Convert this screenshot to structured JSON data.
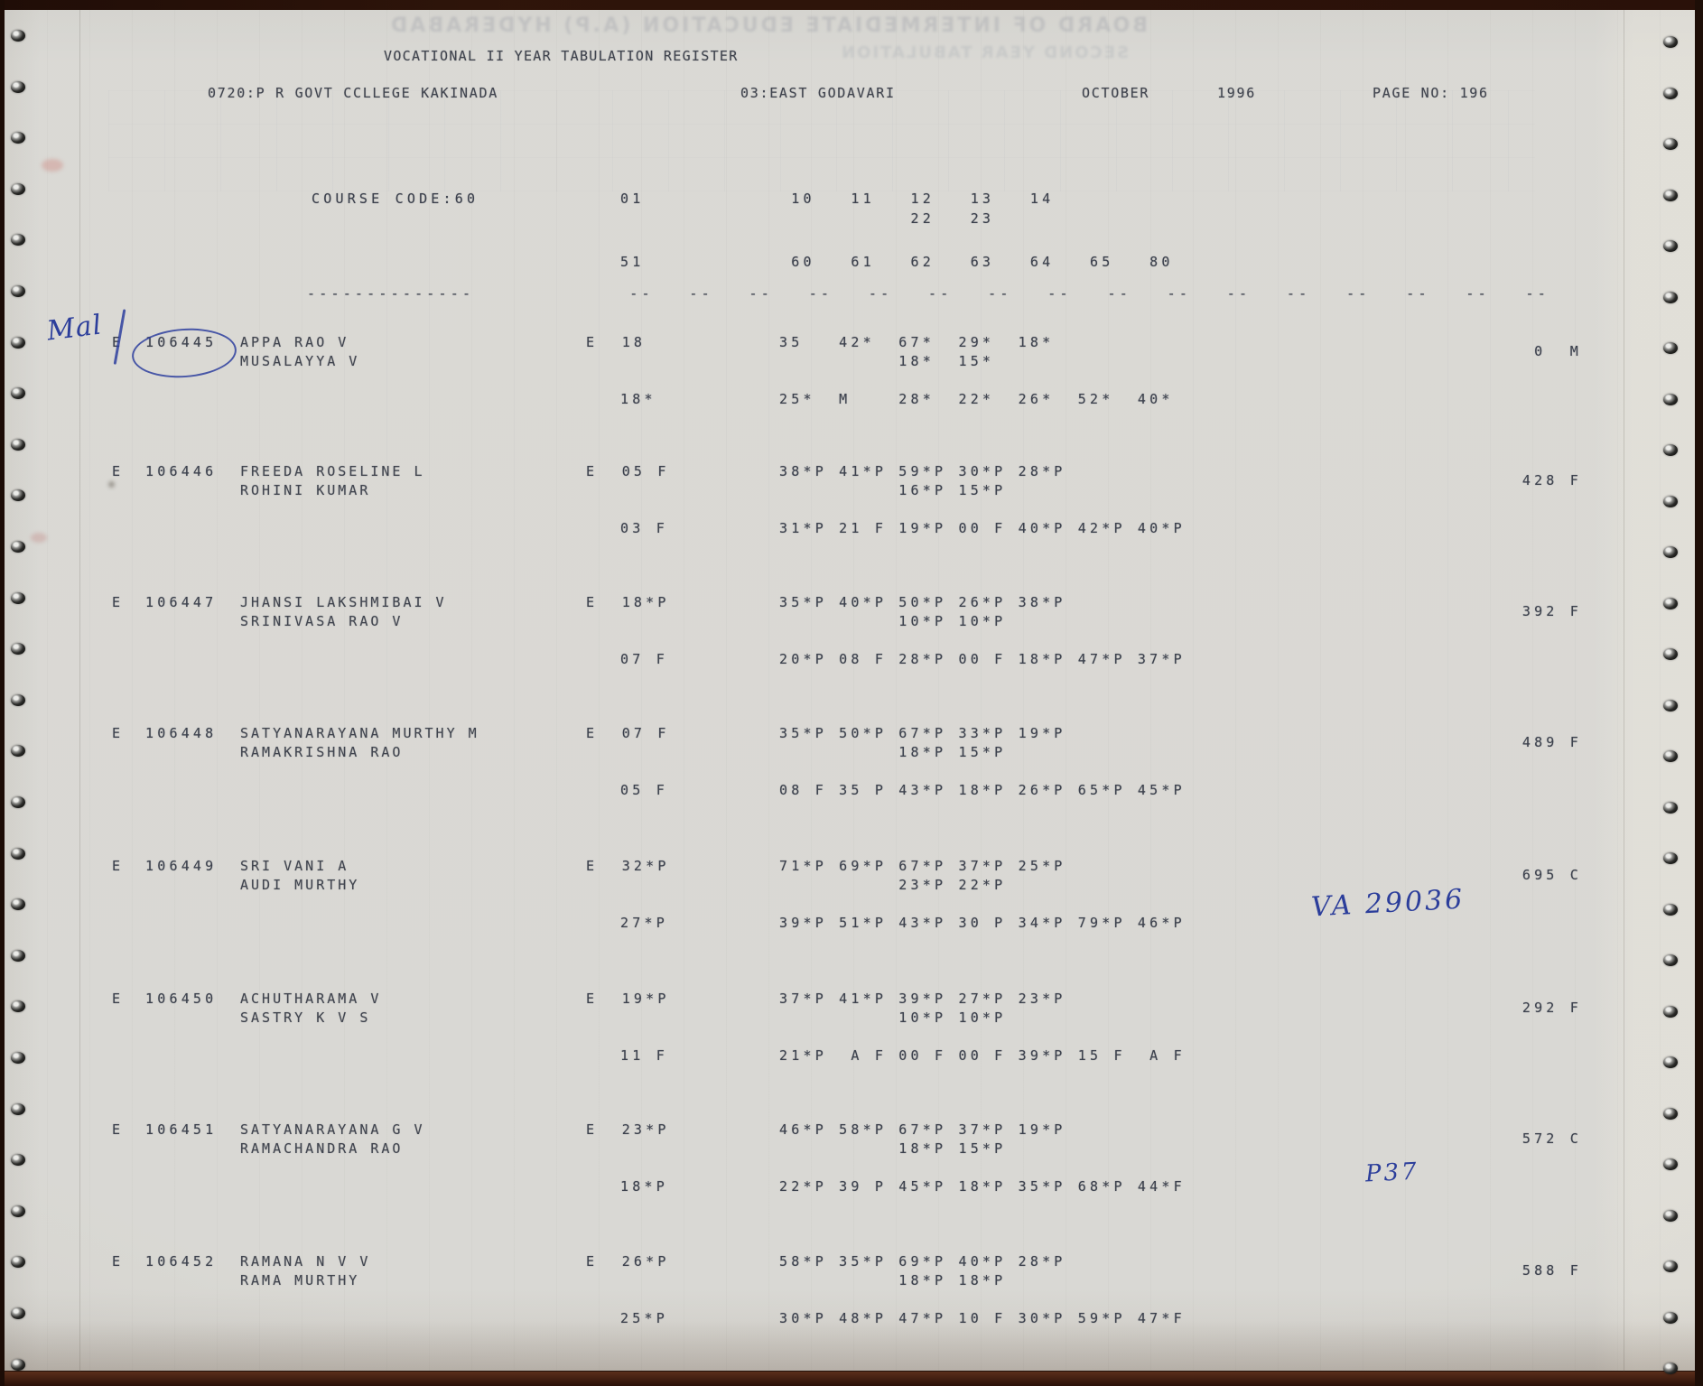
{
  "page": {
    "title": "VOCATIONAL II YEAR TABULATION REGISTER",
    "college": "0720:P R GOVT CCLLEGE KAKINADA",
    "district": "03:EAST GODAVARI",
    "month": "OCTOBER",
    "year": "1996",
    "page_no": "PAGE NO: 196"
  },
  "course": {
    "code_label": "COURSE CODE:60",
    "part1_code": "01",
    "subjects_line1": " 10   11   12   13   14",
    "subjects_line2": "           22   23",
    "part2_code": "51",
    "subjects_line3": " 60   61   62   63   64   65   80",
    "dashes": "--------------             --   --   --   --   --   --   --   --   --   --   --   --   --   --   --   --"
  },
  "rows": [
    {
      "e": "E",
      "reg": "106445",
      "name1": "APPA RAO V",
      "name2": "MUSALAYYA V",
      "p1": "E  18",
      "m1": "35   42*  67*  29*  18*",
      "m2": "          18*  15*",
      "p2": "18*",
      "m3": "25*  M    28*  22*  26*  52*  40*",
      "total": "0  M"
    },
    {
      "e": "E",
      "reg": "106446",
      "name1": "FREEDA ROSELINE L",
      "name2": "ROHINI KUMAR",
      "p1": "E  05 F",
      "m1": "38*P 41*P 59*P 30*P 28*P",
      "m2": "          16*P 15*P",
      "p2": "03 F",
      "m3": "31*P 21 F 19*P 00 F 40*P 42*P 40*P",
      "total": "428 F"
    },
    {
      "e": "E",
      "reg": "106447",
      "name1": "JHANSI LAKSHMIBAI V",
      "name2": "SRINIVASA RAO V",
      "p1": "E  18*P",
      "m1": "35*P 40*P 50*P 26*P 38*P",
      "m2": "          10*P 10*P",
      "p2": "07 F",
      "m3": "20*P 08 F 28*P 00 F 18*P 47*P 37*P",
      "total": "392 F"
    },
    {
      "e": "E",
      "reg": "106448",
      "name1": "SATYANARAYANA MURTHY M",
      "name2": "RAMAKRISHNA RAO",
      "p1": "E  07 F",
      "m1": "35*P 50*P 67*P 33*P 19*P",
      "m2": "          18*P 15*P",
      "p2": "05 F",
      "m3": "08 F 35 P 43*P 18*P 26*P 65*P 45*P",
      "total": "489 F"
    },
    {
      "e": "E",
      "reg": "106449",
      "name1": "SRI VANI A",
      "name2": "AUDI MURTHY",
      "p1": "E  32*P",
      "m1": "71*P 69*P 67*P 37*P 25*P",
      "m2": "          23*P 22*P",
      "p2": "27*P",
      "m3": "39*P 51*P 43*P 30 P 34*P 79*P 46*P",
      "total": "695 C",
      "note": "VA 29036"
    },
    {
      "e": "E",
      "reg": "106450",
      "name1": "ACHUTHARAMA V",
      "name2": "SASTRY K V S",
      "p1": "E  19*P",
      "m1": "37*P 41*P 39*P 27*P 23*P",
      "m2": "          10*P 10*P",
      "p2": "11 F",
      "m3": "21*P  A F 00 F 00 F 39*P 15 F  A F",
      "total": "292 F"
    },
    {
      "e": "E",
      "reg": "106451",
      "name1": "SATYANARAYANA G V",
      "name2": "RAMACHANDRA RAO",
      "p1": "E  23*P",
      "m1": "46*P 58*P 67*P 37*P 19*P",
      "m2": "          18*P 15*P",
      "p2": "18*P",
      "m3": "22*P 39 P 45*P 18*P 35*P 68*P 44*F",
      "total": "572 C",
      "note": "P37"
    },
    {
      "e": "E",
      "reg": "106452",
      "name1": "RAMANA N V V",
      "name2": "RAMA MURTHY",
      "p1": "E  26*P",
      "m1": "58*P 35*P 69*P 40*P 28*P",
      "m2": "          18*P 18*P",
      "p2": "25*P",
      "m3": "30*P 48*P 47*P 10 F 30*P 59*P 47*F",
      "total": "588 F"
    }
  ],
  "annotations": {
    "left_note": "Mal",
    "circled_regno": "106445"
  },
  "ghost": {
    "line1": "BOARD OF INTERMEDIATE EDUCATION (A.P) HYDERABAD",
    "line2": "SECOND YEAR TABULATION"
  }
}
